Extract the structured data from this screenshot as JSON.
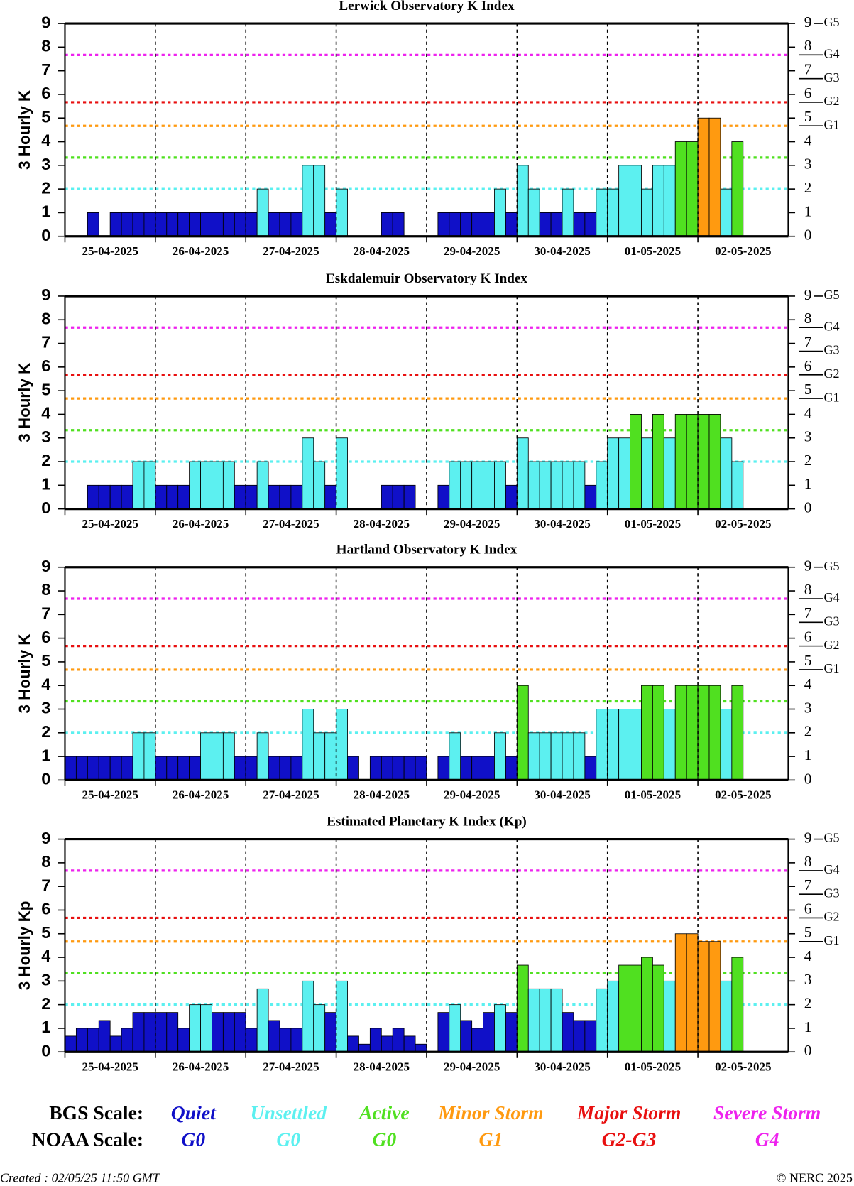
{
  "chart_data": [
    {
      "type": "bar",
      "title": "Lerwick Observatory K Index",
      "y_label": "3 Hourly K",
      "x_labels": [
        "25-04-2025",
        "26-04-2025",
        "27-04-2025",
        "28-04-2025",
        "29-04-2025",
        "30-04-2025",
        "01-05-2025",
        "02-05-2025"
      ],
      "values": [
        0,
        0,
        1,
        0,
        1,
        1,
        1,
        1,
        1,
        1,
        1,
        1,
        1,
        1,
        1,
        1,
        1,
        2,
        1,
        1,
        1,
        3,
        3,
        1,
        2,
        0,
        0,
        0,
        1,
        1,
        0,
        0,
        0,
        1,
        1,
        1,
        1,
        1,
        2,
        1,
        3,
        2,
        1,
        1,
        2,
        1,
        1,
        2,
        2,
        3,
        3,
        2,
        3,
        3,
        4,
        4,
        5,
        5,
        2,
        4,
        null,
        null,
        null,
        null
      ],
      "ylim": [
        0,
        9
      ],
      "yticks": [
        0,
        1,
        2,
        3,
        4,
        5,
        6,
        7,
        8,
        9
      ],
      "y2ticks": [
        {
          "value": 4.67,
          "label": "G1"
        },
        {
          "value": 5.67,
          "label": "G2"
        },
        {
          "value": 6.67,
          "label": "G3"
        },
        {
          "value": 7.67,
          "label": "G4"
        },
        {
          "value": 9,
          "label": "G5"
        }
      ]
    },
    {
      "type": "bar",
      "title": "Eskdalemuir Observatory K Index",
      "y_label": "3 Hourly K",
      "x_labels": [
        "25-04-2025",
        "26-04-2025",
        "27-04-2025",
        "28-04-2025",
        "29-04-2025",
        "30-04-2025",
        "01-05-2025",
        "02-05-2025"
      ],
      "values": [
        0,
        0,
        1,
        1,
        1,
        1,
        2,
        2,
        1,
        1,
        1,
        2,
        2,
        2,
        2,
        1,
        1,
        2,
        1,
        1,
        1,
        3,
        2,
        1,
        3,
        0,
        0,
        0,
        1,
        1,
        1,
        0,
        0,
        1,
        2,
        2,
        2,
        2,
        2,
        1,
        3,
        2,
        2,
        2,
        2,
        2,
        1,
        2,
        3,
        3,
        4,
        3,
        4,
        3,
        4,
        4,
        4,
        4,
        3,
        2,
        null,
        null,
        null,
        null
      ],
      "ylim": [
        0,
        9
      ],
      "yticks": [
        0,
        1,
        2,
        3,
        4,
        5,
        6,
        7,
        8,
        9
      ],
      "y2ticks": [
        {
          "value": 4.67,
          "label": "G1"
        },
        {
          "value": 5.67,
          "label": "G2"
        },
        {
          "value": 6.67,
          "label": "G3"
        },
        {
          "value": 7.67,
          "label": "G4"
        },
        {
          "value": 9,
          "label": "G5"
        }
      ]
    },
    {
      "type": "bar",
      "title": "Hartland Observatory K Index",
      "y_label": "3 Hourly K",
      "x_labels": [
        "25-04-2025",
        "26-04-2025",
        "27-04-2025",
        "28-04-2025",
        "29-04-2025",
        "30-04-2025",
        "01-05-2025",
        "02-05-2025"
      ],
      "values": [
        1,
        1,
        1,
        1,
        1,
        1,
        2,
        2,
        1,
        1,
        1,
        1,
        2,
        2,
        2,
        1,
        1,
        2,
        1,
        1,
        1,
        3,
        2,
        2,
        3,
        1,
        0,
        1,
        1,
        1,
        1,
        1,
        0,
        1,
        2,
        1,
        1,
        1,
        2,
        1,
        4,
        2,
        2,
        2,
        2,
        2,
        1,
        3,
        3,
        3,
        3,
        4,
        4,
        3,
        4,
        4,
        4,
        4,
        3,
        4,
        null,
        null,
        null,
        null
      ],
      "ylim": [
        0,
        9
      ],
      "yticks": [
        0,
        1,
        2,
        3,
        4,
        5,
        6,
        7,
        8,
        9
      ],
      "y2ticks": [
        {
          "value": 4.67,
          "label": "G1"
        },
        {
          "value": 5.67,
          "label": "G2"
        },
        {
          "value": 6.67,
          "label": "G3"
        },
        {
          "value": 7.67,
          "label": "G4"
        },
        {
          "value": 9,
          "label": "G5"
        }
      ]
    },
    {
      "type": "bar",
      "title": "Estimated Planetary K Index (Kp)",
      "y_label": "3 Hourly Kp",
      "x_labels": [
        "25-04-2025",
        "26-04-2025",
        "27-04-2025",
        "28-04-2025",
        "29-04-2025",
        "30-04-2025",
        "01-05-2025",
        "02-05-2025"
      ],
      "values": [
        0.67,
        1,
        1,
        1.33,
        0.67,
        1,
        1.67,
        1.67,
        1.67,
        1.67,
        1,
        2,
        2,
        1.67,
        1.67,
        1.67,
        1,
        2.67,
        1.33,
        1,
        1,
        3,
        2,
        1.67,
        3,
        0.67,
        0.33,
        1,
        0.67,
        1,
        0.67,
        0.33,
        0,
        1.67,
        2,
        1.33,
        1,
        1.67,
        2,
        1.67,
        3.67,
        2.67,
        2.67,
        2.67,
        1.67,
        1.33,
        1.33,
        2.67,
        3,
        3.67,
        3.67,
        4,
        3.67,
        3,
        5,
        5,
        4.67,
        4.67,
        3,
        4,
        null,
        null,
        null,
        null
      ],
      "ylim": [
        0,
        9
      ],
      "yticks": [
        0,
        1,
        2,
        3,
        4,
        5,
        6,
        7,
        8,
        9
      ],
      "y2ticks": [
        {
          "value": 4.67,
          "label": "G1"
        },
        {
          "value": 5.67,
          "label": "G2"
        },
        {
          "value": 6.67,
          "label": "G3"
        },
        {
          "value": 7.67,
          "label": "G4"
        },
        {
          "value": 9,
          "label": "G5"
        }
      ]
    }
  ],
  "scale": {
    "levels": [
      0,
      2,
      3.33,
      4.67,
      5.67,
      7.67
    ],
    "colors": [
      "#1010c8",
      "#5cf0f0",
      "#50e020",
      "#ff9a10",
      "#e81010",
      "#ee22ee"
    ],
    "bgs_label": "BGS Scale:",
    "noaa_label": "NOAA Scale:",
    "bgs": [
      "Quiet",
      "Unsettled",
      "Active",
      "Minor Storm",
      "Major Storm",
      "Severe Storm"
    ],
    "noaa": [
      "G0",
      "G0",
      "G0",
      "G1",
      "G2-G3",
      "G4"
    ]
  },
  "footer": {
    "created": "Created : 02/05/25 11:50 GMT",
    "copyright": "© NERC 2025"
  }
}
